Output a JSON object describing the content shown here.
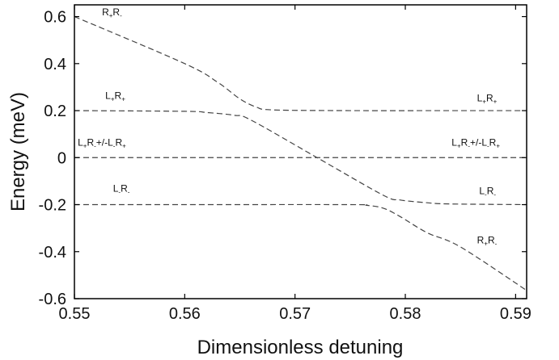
{
  "chart_data": {
    "type": "line",
    "xlabel": "Dimensionless detuning",
    "ylabel": "Energy (meV)",
    "xlim": [
      0.55,
      0.591
    ],
    "ylim": [
      -0.6,
      0.65
    ],
    "x_ticks": [
      "0.55",
      "0.56",
      "0.57",
      "0.58",
      "0.59"
    ],
    "y_ticks": [
      "0.6",
      "0.4",
      "0.2",
      "0",
      "-0.2",
      "-0.4",
      "-0.6"
    ],
    "grid": false,
    "line_style": "dashed",
    "line_color": "#444444",
    "series": [
      {
        "x": [
          0.55,
          0.56,
          0.563,
          0.565,
          0.5665,
          0.568,
          0.575,
          0.585,
          0.591
        ],
        "values": [
          0.6,
          0.4,
          0.32,
          0.25,
          0.215,
          0.203,
          0.2,
          0.2,
          0.2
        ]
      },
      {
        "x": [
          0.55,
          0.56,
          0.562,
          0.5645,
          0.566,
          0.572,
          0.578,
          0.5795,
          0.582,
          0.584,
          0.591
        ],
        "values": [
          0.2,
          0.197,
          0.192,
          0.18,
          0.16,
          0.0,
          -0.16,
          -0.18,
          -0.192,
          -0.197,
          -0.2
        ]
      },
      {
        "x": [
          0.55,
          0.591
        ],
        "values": [
          0.0,
          0.0
        ]
      },
      {
        "x": [
          0.55,
          0.56,
          0.575,
          0.5765,
          0.578,
          0.5795,
          0.582,
          0.585,
          0.591
        ],
        "values": [
          -0.2,
          -0.2,
          -0.2,
          -0.203,
          -0.215,
          -0.25,
          -0.32,
          -0.38,
          -0.565
        ]
      }
    ],
    "annotations": [
      {
        "parts": [
          [
            "R",
            "n"
          ],
          [
            "+",
            "s"
          ],
          [
            "R",
            "n"
          ],
          [
            "-",
            "s"
          ]
        ],
        "x": 0.5525,
        "y": 0.605
      },
      {
        "parts": [
          [
            "L",
            "n"
          ],
          [
            "+",
            "s"
          ],
          [
            "R",
            "n"
          ],
          [
            "+",
            "s"
          ]
        ],
        "x": 0.5528,
        "y": 0.25
      },
      {
        "parts": [
          [
            "L",
            "n"
          ],
          [
            "+",
            "s"
          ],
          [
            "R",
            "n"
          ],
          [
            "+",
            "s"
          ]
        ],
        "x": 0.5865,
        "y": 0.24
      },
      {
        "parts": [
          [
            "L",
            "n"
          ],
          [
            "+",
            "s"
          ],
          [
            "R",
            "n"
          ],
          [
            "-",
            "s"
          ],
          [
            "+/-L",
            "n"
          ],
          [
            "-",
            "s"
          ],
          [
            "R",
            "n"
          ],
          [
            "+",
            "s"
          ]
        ],
        "x": 0.5503,
        "y": 0.05
      },
      {
        "parts": [
          [
            "L",
            "n"
          ],
          [
            "+",
            "s"
          ],
          [
            "R",
            "n"
          ],
          [
            "-",
            "s"
          ],
          [
            "+/-L",
            "n"
          ],
          [
            "-",
            "s"
          ],
          [
            "R",
            "n"
          ],
          [
            "+",
            "s"
          ]
        ],
        "x": 0.5842,
        "y": 0.05
      },
      {
        "parts": [
          [
            "L",
            "n"
          ],
          [
            "-",
            "s"
          ],
          [
            "R",
            "n"
          ],
          [
            "-",
            "s"
          ]
        ],
        "x": 0.5535,
        "y": -0.145
      },
      {
        "parts": [
          [
            "L",
            "n"
          ],
          [
            "-",
            "s"
          ],
          [
            "R",
            "n"
          ],
          [
            "-",
            "s"
          ]
        ],
        "x": 0.5867,
        "y": -0.155
      },
      {
        "parts": [
          [
            "R",
            "n"
          ],
          [
            "+",
            "s"
          ],
          [
            "R",
            "n"
          ],
          [
            "-",
            "s"
          ]
        ],
        "x": 0.5865,
        "y": -0.365
      }
    ]
  }
}
